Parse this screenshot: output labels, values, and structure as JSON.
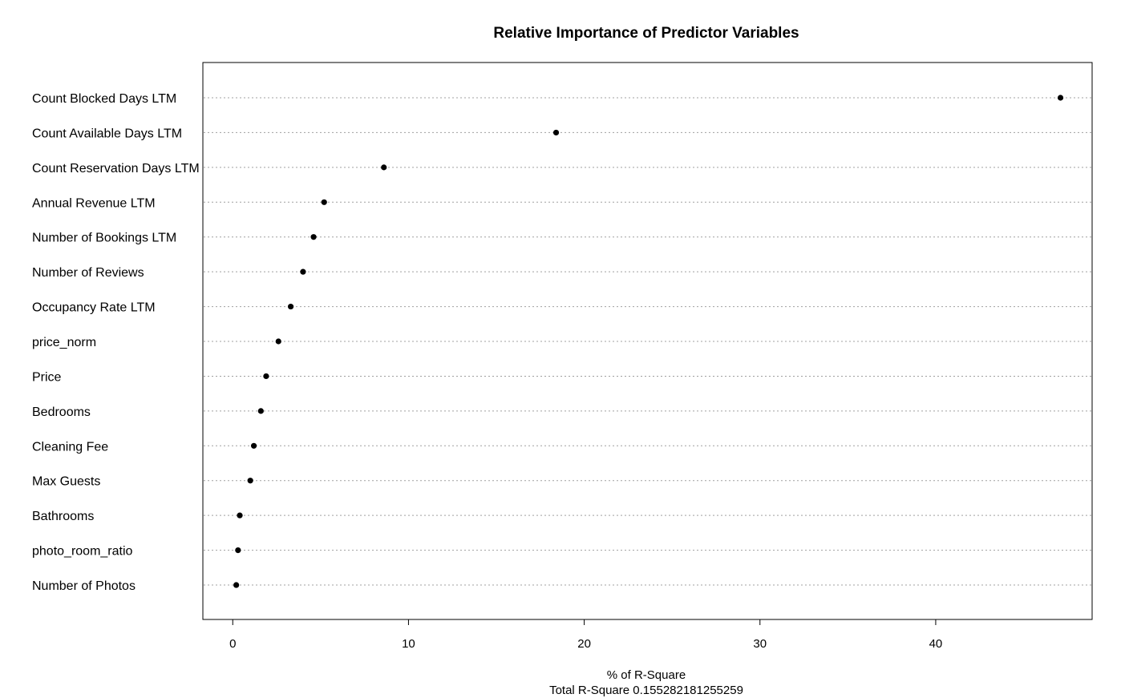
{
  "chart_data": {
    "type": "scatter",
    "title": "Relative Importance of Predictor Variables",
    "xlabel": "% of R-Square",
    "subtitle": "Total R-Square 0.155282181255259",
    "xlim": [
      -1.7,
      48.9
    ],
    "xticks": [
      0,
      10,
      20,
      30,
      40
    ],
    "grid": "horizontal dotted",
    "categories": [
      "Count Blocked Days LTM",
      "Count Available Days LTM",
      "Count Reservation Days LTM",
      "Annual Revenue LTM",
      "Number of Bookings LTM",
      "Number of Reviews",
      "Occupancy Rate LTM",
      "price_norm",
      "Price",
      "Bedrooms",
      "Cleaning Fee",
      "Max Guests",
      "Bathrooms",
      "photo_room_ratio",
      "Number of Photos"
    ],
    "values": [
      47.1,
      18.4,
      8.6,
      5.2,
      4.6,
      4.0,
      3.3,
      2.6,
      1.9,
      1.6,
      1.2,
      1.0,
      0.4,
      0.3,
      0.2
    ]
  }
}
